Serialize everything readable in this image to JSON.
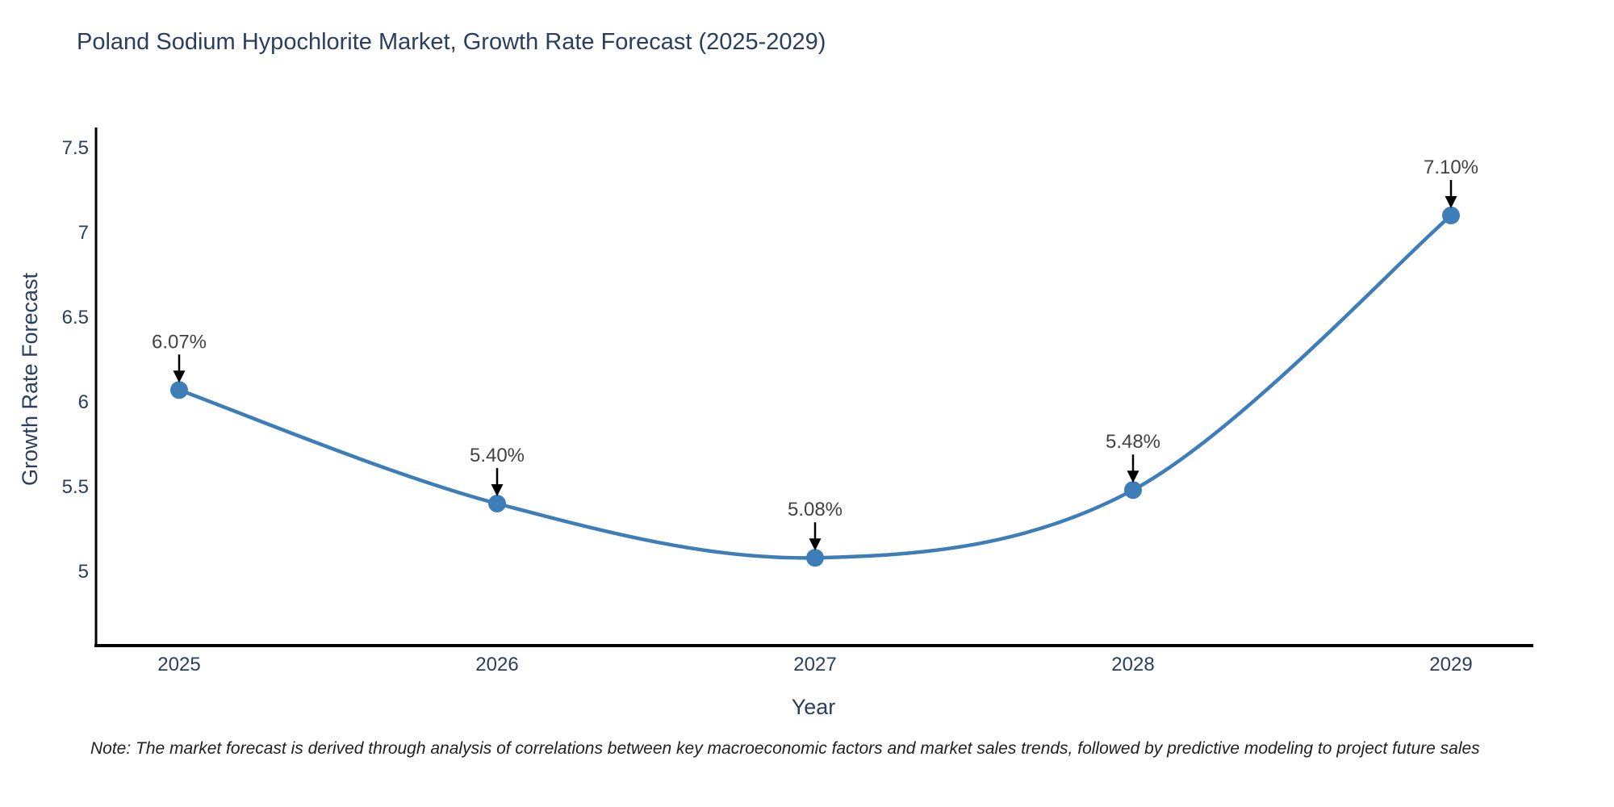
{
  "title": "Poland Sodium Hypochlorite Market, Growth Rate Forecast (2025-2029)",
  "note": "Note: The market forecast is derived through analysis of correlations between key macroeconomic factors and market sales trends, followed by predictive modeling to project future sales",
  "colors": {
    "background": "#ffffff",
    "title_text": "#2a3f5f",
    "axis_line": "#000000",
    "tick_text": "#2a3f5f",
    "axis_title_text": "#2a3f5f",
    "series_line": "#3d7eb8",
    "marker_fill": "#3d7eb8",
    "annotation_text": "#424242",
    "annotation_arrow": "#000000"
  },
  "chart_data": {
    "type": "line",
    "line_shape": "spline",
    "title": "Poland Sodium Hypochlorite Market, Growth Rate Forecast (2025-2029)",
    "xlabel": "Year",
    "ylabel": "Growth Rate Forecast",
    "x": [
      2025,
      2026,
      2027,
      2028,
      2029
    ],
    "series": [
      {
        "name": "Growth Rate Forecast",
        "values": [
          6.07,
          5.4,
          5.08,
          5.48,
          7.1
        ]
      }
    ],
    "data_labels": [
      "6.07%",
      "5.40%",
      "5.08%",
      "5.48%",
      "7.10%"
    ],
    "yticks": [
      {
        "value": 5,
        "label": "5"
      },
      {
        "value": 5.5,
        "label": "5.5"
      },
      {
        "value": 6,
        "label": "6"
      },
      {
        "value": 6.5,
        "label": "6.5"
      },
      {
        "value": 7,
        "label": "7"
      },
      {
        "value": 7.5,
        "label": "7.5"
      }
    ],
    "ylim": [
      4.56,
      7.63
    ],
    "grid": false,
    "legend": "none",
    "annotations_have_arrows": true
  }
}
